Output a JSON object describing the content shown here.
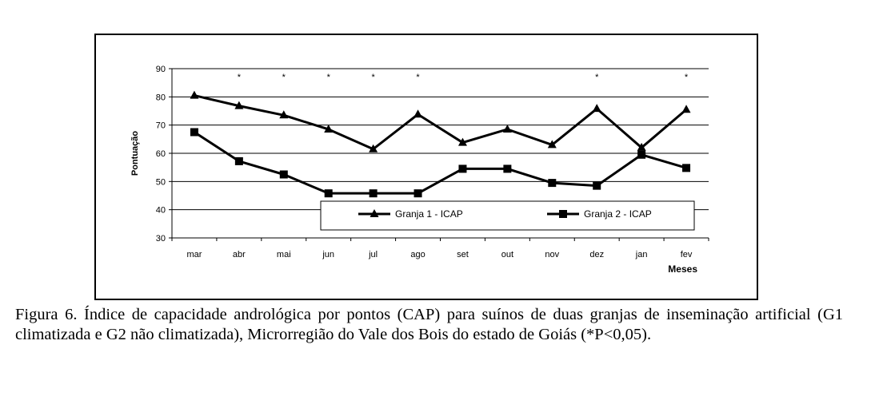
{
  "chart_data": {
    "type": "line",
    "categories": [
      "mar",
      "abr",
      "mai",
      "jun",
      "jul",
      "ago",
      "set",
      "out",
      "nov",
      "dez",
      "jan",
      "fev"
    ],
    "series": [
      {
        "name": "Granja 1 - ICAP",
        "marker": "triangle",
        "values": [
          80.5,
          76.8,
          73.5,
          68.5,
          61.5,
          73.8,
          63.8,
          68.5,
          63.0,
          75.8,
          62.0,
          75.5
        ]
      },
      {
        "name": "Granja 2 - ICAP",
        "marker": "square",
        "values": [
          67.5,
          57.2,
          52.5,
          45.8,
          45.8,
          45.8,
          54.5,
          54.5,
          49.5,
          48.5,
          59.5,
          54.8
        ]
      }
    ],
    "significant": [
      false,
      true,
      true,
      true,
      true,
      true,
      false,
      false,
      false,
      true,
      false,
      true
    ],
    "significance_marker": "*",
    "ylabel": "Pontuação",
    "xlabel": "Meses",
    "ylim": [
      30,
      90
    ],
    "yticks": [
      30,
      40,
      50,
      60,
      70,
      80,
      90
    ],
    "grid": true,
    "legend_position": "bottom-center",
    "line_color": "#000000"
  },
  "caption": "Figura 6. Índice de capacidade andrológica por pontos (CAP) para suínos de duas granjas de inseminação artificial (G1 climatizada e G2 não climatizada), Microrregião do Vale dos Bois do estado de Goiás (*P<0,05)."
}
